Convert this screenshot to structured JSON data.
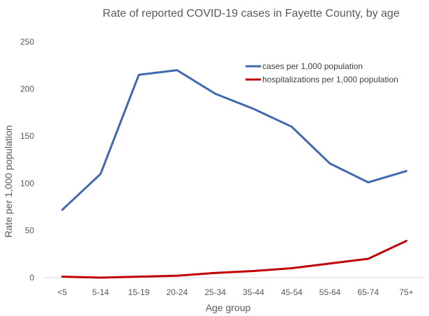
{
  "chart_data": {
    "type": "line",
    "title": "Rate of reported COVID-19 cases in Fayette County, by age",
    "xlabel": "Age group",
    "ylabel": "Rate per 1,000 population",
    "categories": [
      "<5",
      "5-14",
      "15-19",
      "20-24",
      "25-34",
      "35-44",
      "45-54",
      "55-64",
      "65-74",
      "75+"
    ],
    "ylim": [
      0,
      250
    ],
    "yticks": [
      0,
      50,
      100,
      150,
      200,
      250
    ],
    "grid": false,
    "legend_position": "top-right",
    "series": [
      {
        "name": "cases per 1,000 population",
        "color": "#4068AE",
        "values": [
          72,
          110,
          215,
          220,
          195,
          179,
          160,
          121,
          101,
          113
        ]
      },
      {
        "name": "hospitalizations per 1,000 population",
        "color": "#C00000",
        "values": [
          1,
          0,
          1,
          2,
          5,
          7,
          10,
          15,
          20,
          39
        ]
      }
    ]
  }
}
